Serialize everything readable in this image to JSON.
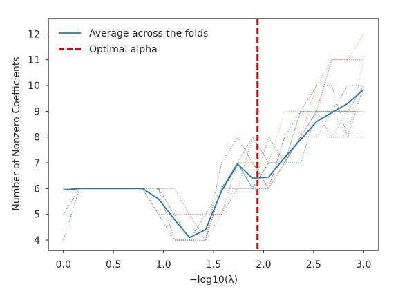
{
  "chart_data": {
    "type": "line",
    "xlabel": "−log10(λ)",
    "ylabel": "Number of Nonzero Coefficients",
    "xlim": [
      -0.15,
      3.15
    ],
    "ylim": [
      3.6,
      12.6
    ],
    "x_ticks": [
      0.0,
      0.5,
      1.0,
      1.5,
      2.0,
      2.5,
      3.0
    ],
    "x_tick_labels": [
      "0.0",
      "0.5",
      "1.0",
      "1.5",
      "2.0",
      "2.5",
      "3.0"
    ],
    "y_ticks": [
      4,
      5,
      6,
      7,
      8,
      9,
      10,
      11,
      12
    ],
    "y_tick_labels": [
      "4",
      "5",
      "6",
      "7",
      "8",
      "9",
      "10",
      "11",
      "12"
    ],
    "grid": false,
    "legend_position": "top-left",
    "legend": [
      {
        "label": "Average across the folds",
        "style": "solid",
        "color": "#1f77b4"
      },
      {
        "label": "Optimal alpha",
        "style": "dashed",
        "color": "#e50000"
      }
    ],
    "optimal_alpha_x": 1.94,
    "average": {
      "x": [
        0.0,
        0.16,
        0.32,
        0.47,
        0.63,
        0.79,
        0.95,
        1.11,
        1.26,
        1.42,
        1.58,
        1.74,
        1.89,
        2.05,
        2.21,
        2.37,
        2.53,
        2.68,
        2.84,
        3.0
      ],
      "values": [
        5.95,
        6.0,
        6.0,
        6.0,
        6.0,
        6.0,
        5.6,
        4.8,
        4.1,
        4.4,
        5.9,
        6.95,
        6.4,
        6.45,
        7.2,
        7.9,
        8.6,
        8.95,
        9.3,
        9.85
      ]
    },
    "folds": [
      {
        "color": "#1f77b4",
        "values": [
          4,
          6,
          6,
          6,
          6,
          6,
          5,
          4,
          4,
          4,
          6,
          7,
          6,
          6,
          7,
          7,
          9,
          9,
          10,
          10
        ]
      },
      {
        "color": "#ff7f0e",
        "values": [
          6,
          6,
          6,
          6,
          6,
          6,
          6,
          5,
          4,
          5,
          5,
          7,
          7,
          6,
          7,
          8,
          10,
          11,
          11,
          12
        ]
      },
      {
        "color": "#2ca02c",
        "values": [
          6,
          6,
          6,
          6,
          6,
          6,
          6,
          5,
          4,
          5,
          6,
          7,
          6,
          8,
          7,
          9,
          9,
          9,
          9,
          9
        ]
      },
      {
        "color": "#d62728",
        "values": [
          5,
          6,
          6,
          6,
          6,
          6,
          6,
          5,
          5,
          5,
          5,
          6,
          6,
          7,
          7,
          8,
          9,
          11,
          11,
          11
        ]
      },
      {
        "color": "#9467bd",
        "values": [
          6,
          6,
          6,
          6,
          6,
          6,
          6,
          6,
          5,
          4,
          6,
          6,
          8,
          7,
          7,
          8,
          9,
          9,
          9,
          10
        ]
      },
      {
        "color": "#8c564b",
        "values": [
          6,
          6,
          6,
          6,
          6,
          6,
          6,
          4,
          4,
          4,
          7,
          8,
          7,
          6,
          8,
          9,
          10,
          10,
          8,
          10
        ]
      },
      {
        "color": "#e377c2",
        "values": [
          6,
          6,
          6,
          6,
          6,
          6,
          5,
          5,
          4,
          4,
          5,
          7,
          8,
          7,
          7,
          8,
          8,
          9,
          8,
          11
        ]
      },
      {
        "color": "#7f7f7f",
        "values": [
          6,
          6,
          6,
          6,
          6,
          6,
          6,
          4,
          4,
          4,
          6,
          7,
          7,
          6,
          8,
          8,
          8,
          8,
          8,
          8
        ]
      },
      {
        "color": "#bcbd22",
        "values": [
          6,
          6,
          6,
          6,
          6,
          6,
          5,
          5,
          4,
          5,
          6,
          7,
          7,
          7,
          9,
          9,
          9,
          9,
          9,
          9
        ]
      },
      {
        "color": "#17becf",
        "values": [
          6,
          6,
          6,
          6,
          6,
          6,
          6,
          5,
          4,
          5,
          6,
          7,
          6,
          7,
          7,
          9,
          9,
          8,
          9,
          10
        ]
      }
    ]
  }
}
